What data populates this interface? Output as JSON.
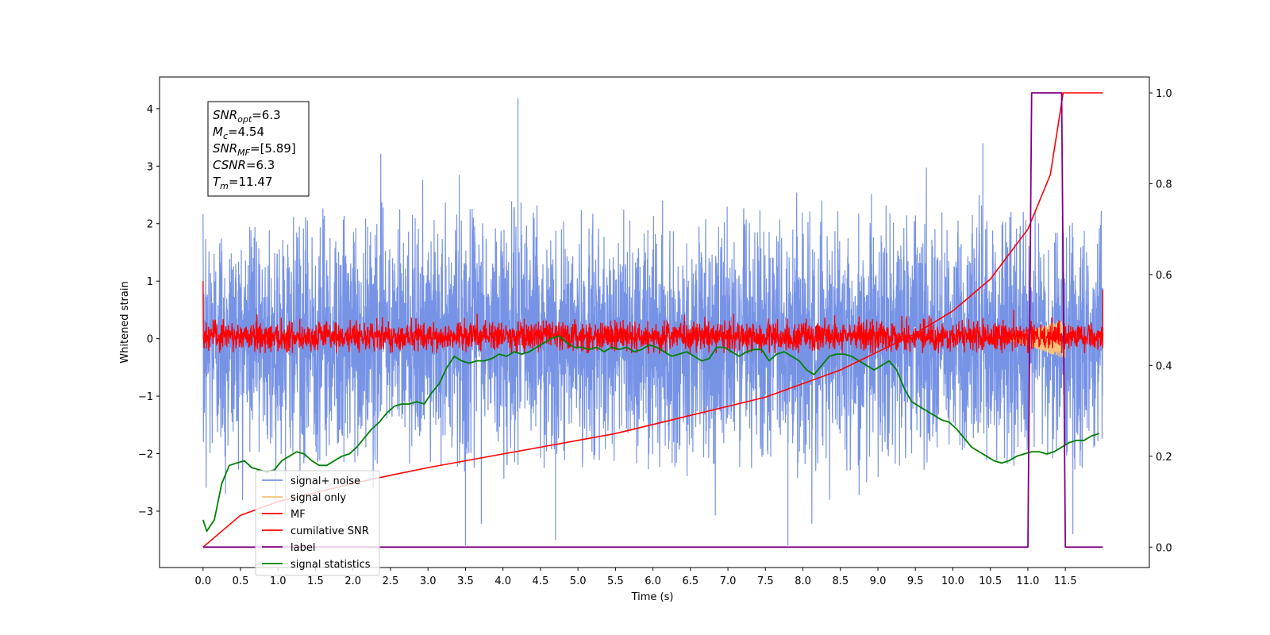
{
  "chart_data": {
    "type": "line",
    "xlabel": "Time (s)",
    "ylabel": "Whitened strain",
    "xlim": [
      -0.58,
      12.62
    ],
    "ylim": [
      -3.98,
      4.55
    ],
    "y2lim": [
      -0.045,
      1.035
    ],
    "x_ticks": [
      "0.0",
      "0.5",
      "1.0",
      "1.5",
      "2.0",
      "2.5",
      "3.0",
      "3.5",
      "4.0",
      "4.5",
      "5.0",
      "5.5",
      "6.0",
      "6.5",
      "7.0",
      "7.5",
      "8.0",
      "8.5",
      "9.0",
      "9.5",
      "10.0",
      "10.5",
      "11.0",
      "11.5"
    ],
    "y_ticks": [
      -3,
      -2,
      -1,
      0,
      1,
      2,
      3,
      4
    ],
    "y2_ticks": [
      "0.0",
      "0.2",
      "0.4",
      "0.6",
      "0.8",
      "1.0"
    ],
    "legend": {
      "placement": "lower-left",
      "entries": [
        {
          "label": "signal+ noise",
          "color": "#7793e6"
        },
        {
          "label": "signal only",
          "color": "#f5c37a"
        },
        {
          "label": "MF",
          "color": "#ff0000"
        },
        {
          "label": "cumilative SNR",
          "color": "#ff0000"
        },
        {
          "label": "label",
          "color": "#800080"
        },
        {
          "label": "signal statistics",
          "color": "#008000"
        }
      ]
    },
    "info_box": [
      {
        "base": "SNR",
        "sub": "opt",
        "rest": "=6.3"
      },
      {
        "base": "M",
        "sub": "c",
        "rest": "=4.54"
      },
      {
        "base": "SNR",
        "sub": "MF",
        "rest": "=[5.89]"
      },
      {
        "base": "CSNR",
        "sub": "",
        "rest": "=6.3"
      },
      {
        "base": "T",
        "sub": "m",
        "rest": "=11.47"
      }
    ],
    "series": [
      {
        "name": "signal+ noise",
        "axis": "left",
        "color": "#7793e6",
        "x_range": [
          0,
          12
        ],
        "envelope_approx": {
          "typical_max": 2.3,
          "typical_min": -2.3,
          "peak_max": 4.18,
          "peak_min": -3.6
        }
      },
      {
        "name": "signal only",
        "axis": "left",
        "color": "#f5c37a",
        "x_range": [
          10.7,
          11.5
        ],
        "amplitude_approx": 0.35
      },
      {
        "name": "MF",
        "axis": "left",
        "color": "#ff0000",
        "x_range": [
          0,
          12
        ],
        "band_approx": [
          -0.25,
          0.5
        ],
        "start_value": 1.0,
        "end_value": 0.85
      },
      {
        "name": "cumilative SNR",
        "axis": "right",
        "color": "#ff0000",
        "x": [
          0.0,
          0.5,
          1.0,
          1.5,
          2.0,
          2.5,
          3.0,
          3.5,
          4.0,
          4.5,
          5.0,
          5.5,
          6.0,
          6.5,
          7.0,
          7.5,
          8.0,
          8.5,
          9.0,
          9.5,
          10.0,
          10.5,
          11.0,
          11.3,
          11.47,
          11.5,
          12.0
        ],
        "values": [
          0.0,
          0.07,
          0.1,
          0.12,
          0.14,
          0.158,
          0.175,
          0.19,
          0.205,
          0.22,
          0.235,
          0.25,
          0.27,
          0.29,
          0.31,
          0.33,
          0.36,
          0.39,
          0.43,
          0.47,
          0.52,
          0.59,
          0.7,
          0.82,
          1.0,
          1.0,
          1.0
        ]
      },
      {
        "name": "label",
        "axis": "right",
        "color": "#800080",
        "x": [
          0.0,
          11.0,
          11.05,
          11.45,
          11.5,
          12.0
        ],
        "values": [
          0.0,
          0.0,
          1.0,
          1.0,
          0.0,
          0.0
        ]
      },
      {
        "name": "signal statistics",
        "axis": "right",
        "color": "#008000",
        "x": [
          0.0,
          0.05,
          0.15,
          0.25,
          0.35,
          0.45,
          0.55,
          0.65,
          0.75,
          0.85,
          0.95,
          1.05,
          1.15,
          1.25,
          1.35,
          1.45,
          1.55,
          1.65,
          1.75,
          1.85,
          1.95,
          2.05,
          2.15,
          2.25,
          2.35,
          2.45,
          2.55,
          2.65,
          2.75,
          2.85,
          2.95,
          3.05,
          3.15,
          3.25,
          3.35,
          3.45,
          3.55,
          3.65,
          3.75,
          3.85,
          3.95,
          4.05,
          4.15,
          4.25,
          4.35,
          4.45,
          4.55,
          4.65,
          4.75,
          4.85,
          4.95,
          5.05,
          5.15,
          5.25,
          5.35,
          5.45,
          5.55,
          5.65,
          5.75,
          5.85,
          5.95,
          6.05,
          6.15,
          6.25,
          6.35,
          6.45,
          6.55,
          6.65,
          6.75,
          6.85,
          6.95,
          7.05,
          7.15,
          7.25,
          7.35,
          7.45,
          7.55,
          7.65,
          7.75,
          7.85,
          7.95,
          8.05,
          8.15,
          8.25,
          8.35,
          8.45,
          8.55,
          8.65,
          8.75,
          8.85,
          8.95,
          9.05,
          9.15,
          9.25,
          9.35,
          9.45,
          9.55,
          9.65,
          9.75,
          9.85,
          9.95,
          10.05,
          10.15,
          10.25,
          10.35,
          10.45,
          10.55,
          10.65,
          10.75,
          10.85,
          10.95,
          11.05,
          11.15,
          11.25,
          11.35,
          11.45,
          11.55,
          11.65,
          11.75,
          11.85,
          11.95
        ],
        "values": [
          0.06,
          0.035,
          0.06,
          0.14,
          0.18,
          0.185,
          0.19,
          0.175,
          0.17,
          0.165,
          0.17,
          0.19,
          0.2,
          0.21,
          0.205,
          0.19,
          0.18,
          0.18,
          0.19,
          0.2,
          0.205,
          0.22,
          0.24,
          0.26,
          0.275,
          0.295,
          0.31,
          0.315,
          0.315,
          0.32,
          0.315,
          0.34,
          0.36,
          0.395,
          0.42,
          0.41,
          0.405,
          0.41,
          0.41,
          0.415,
          0.425,
          0.42,
          0.43,
          0.425,
          0.43,
          0.44,
          0.45,
          0.46,
          0.465,
          0.45,
          0.44,
          0.44,
          0.435,
          0.44,
          0.43,
          0.44,
          0.435,
          0.44,
          0.43,
          0.435,
          0.445,
          0.44,
          0.43,
          0.42,
          0.425,
          0.43,
          0.42,
          0.41,
          0.415,
          0.44,
          0.44,
          0.43,
          0.42,
          0.43,
          0.435,
          0.435,
          0.41,
          0.425,
          0.43,
          0.42,
          0.41,
          0.39,
          0.38,
          0.4,
          0.42,
          0.425,
          0.425,
          0.42,
          0.41,
          0.4,
          0.39,
          0.4,
          0.41,
          0.39,
          0.35,
          0.32,
          0.31,
          0.3,
          0.29,
          0.28,
          0.275,
          0.26,
          0.24,
          0.22,
          0.21,
          0.2,
          0.19,
          0.185,
          0.19,
          0.2,
          0.205,
          0.21,
          0.21,
          0.205,
          0.21,
          0.22,
          0.23,
          0.235,
          0.235,
          0.245,
          0.25
        ]
      }
    ]
  }
}
